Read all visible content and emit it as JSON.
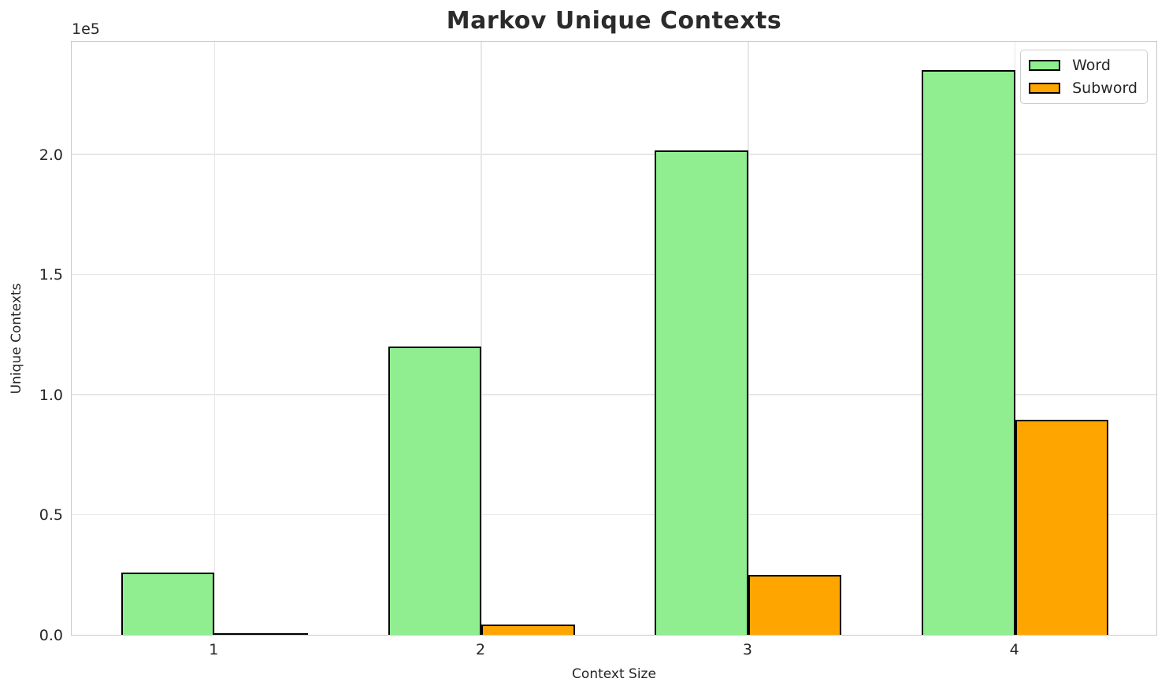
{
  "chart_data": {
    "type": "bar",
    "title": "Markov Unique Contexts",
    "xlabel": "Context Size",
    "ylabel": "Unique Contexts",
    "y_offset_label": "1e5",
    "categories": [
      "1",
      "2",
      "3",
      "4"
    ],
    "series": [
      {
        "name": "Word",
        "color": "#90EE90",
        "values": [
          26000,
          120000,
          201500,
          235000
        ]
      },
      {
        "name": "Subword",
        "color": "#FFA500",
        "values": [
          700,
          4400,
          25000,
          89500
        ]
      }
    ],
    "bar_edge_color": "#000000",
    "ylim": [
      0,
      247500
    ],
    "yticks": {
      "values": [
        0,
        50000,
        100000,
        150000,
        200000
      ],
      "labels": [
        "0.0",
        "0.5",
        "1.0",
        "1.5",
        "2.0"
      ]
    },
    "grid": true,
    "legend_position": "upper right"
  },
  "style": {
    "grid_color": "#e7e7e7",
    "spine_color": "#c9c9c9",
    "text_color": "#262626",
    "title_color": "#2b2b2b",
    "background": "#ffffff"
  }
}
